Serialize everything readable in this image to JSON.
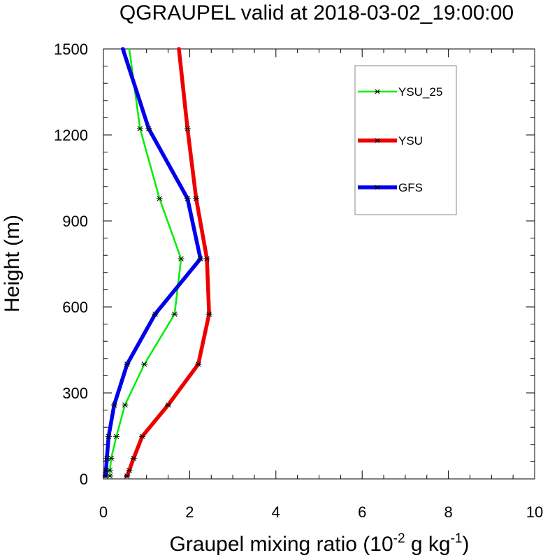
{
  "chart_data": {
    "type": "line",
    "title": "QGRAUPEL valid at 2018-03-02_19:00:00",
    "xlabel": {
      "main": "Graupel mixing ratio (10",
      "exp1": "-2",
      "mid": " g kg",
      "exp2": "-1",
      "end": ")"
    },
    "ylabel": "Height (m)",
    "xlim": [
      0,
      10
    ],
    "ylim": [
      0,
      1500
    ],
    "xticks": [
      "0",
      "2",
      "4",
      "6",
      "8",
      "10"
    ],
    "yticks": [
      "0",
      "300",
      "600",
      "900",
      "1200",
      "1500"
    ],
    "legend_position": "top-right",
    "series": [
      {
        "name": "YSU_25",
        "color": "#00ee00",
        "x": [
          0.15,
          0.15,
          0.18,
          0.3,
          0.5,
          0.95,
          1.65,
          1.8,
          1.3,
          0.85,
          0.6
        ],
        "y": [
          10,
          30,
          72,
          148,
          258,
          400,
          575,
          768,
          978,
          1222,
          1500
        ]
      },
      {
        "name": "YSU",
        "color": "#ee0000",
        "x": [
          0.55,
          0.6,
          0.7,
          0.9,
          1.5,
          2.2,
          2.45,
          2.4,
          2.15,
          1.95,
          1.75
        ],
        "y": [
          10,
          30,
          72,
          148,
          258,
          400,
          575,
          768,
          978,
          1222,
          1500
        ]
      },
      {
        "name": "GFS",
        "color": "#0000ee",
        "x": [
          0.05,
          0.06,
          0.08,
          0.12,
          0.25,
          0.55,
          1.2,
          2.25,
          1.95,
          1.05,
          0.45
        ],
        "y": [
          10,
          30,
          72,
          148,
          258,
          400,
          575,
          768,
          978,
          1222,
          1500
        ]
      }
    ]
  }
}
